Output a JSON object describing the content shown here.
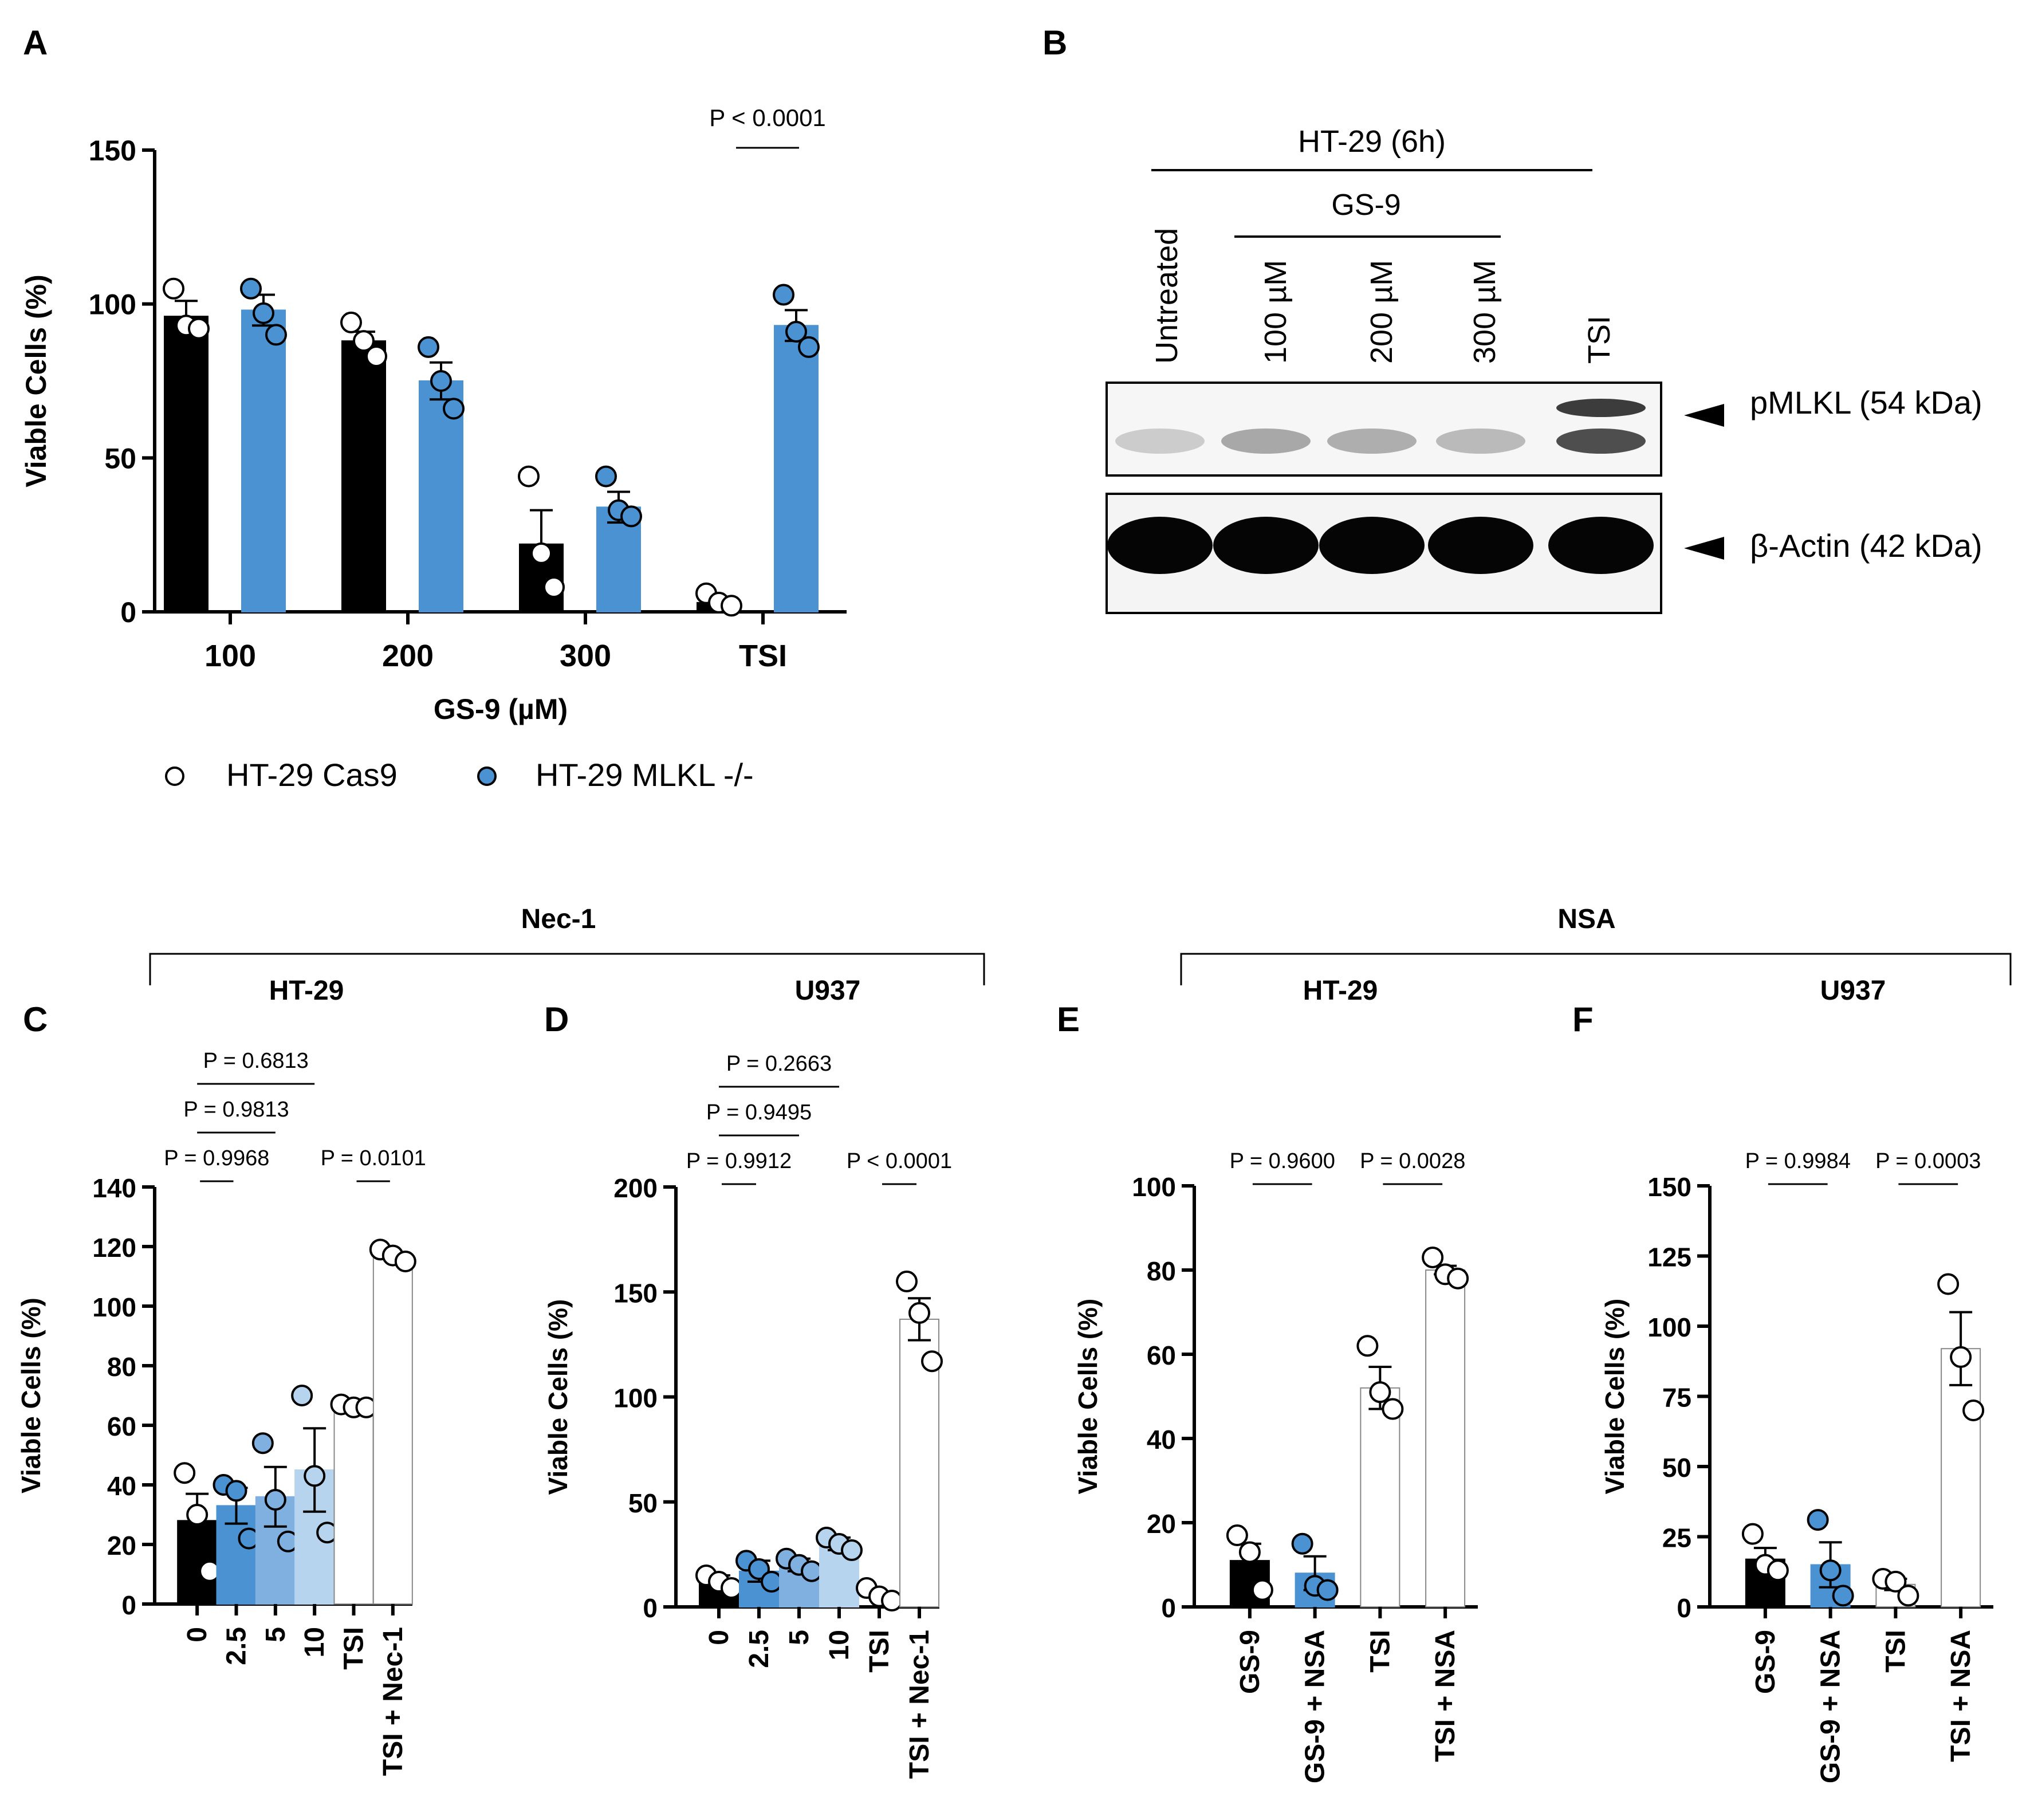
{
  "panel_labels": {
    "a": "A",
    "b": "B",
    "c": "C",
    "d": "D",
    "e": "E",
    "f": "F"
  },
  "colors": {
    "black": "#000000",
    "blue": "#4b92d3",
    "mid_blue": "#7fb0e0",
    "light_blue": "#b7d4ee",
    "white": "#ffffff"
  },
  "chart_data": [
    {
      "id": "A",
      "type": "bar",
      "title": "",
      "xlabel": "GS-9 (µM)",
      "ylabel": "Viable Cells (%)",
      "ylim": [
        0,
        150
      ],
      "yticks": [
        "0",
        "50",
        "100",
        "150"
      ],
      "categories": [
        "100",
        "200",
        "300",
        "TSI"
      ],
      "series": [
        {
          "name": "HT-29 Cas9",
          "color": "#000000",
          "marker": "open",
          "values": [
            96,
            88,
            22,
            3
          ],
          "errors": [
            5,
            3,
            11,
            1
          ],
          "points": [
            [
              105,
              93,
              92
            ],
            [
              94,
              88,
              83
            ],
            [
              44,
              19,
              8
            ],
            [
              6,
              3,
              2
            ]
          ]
        },
        {
          "name": "HT-29 MLKL -/-",
          "color": "#4b92d3",
          "marker": "filled",
          "values": [
            98,
            75,
            34,
            93
          ],
          "errors": [
            5,
            6,
            5,
            5
          ],
          "points": [
            [
              105,
              97,
              90
            ],
            [
              86,
              75,
              66
            ],
            [
              44,
              33,
              31
            ],
            [
              103,
              91,
              86
            ]
          ]
        }
      ],
      "annotations": [
        {
          "text": "P < 0.0001",
          "between": "TSI"
        }
      ]
    },
    {
      "id": "C",
      "type": "bar",
      "group_label": "HT-29",
      "xlabel": "",
      "ylabel": "Viable Cells (%)",
      "ylim": [
        0,
        140
      ],
      "yticks": [
        "0",
        "20",
        "40",
        "60",
        "80",
        "100",
        "120",
        "140"
      ],
      "categories": [
        "0",
        "2.5",
        "5",
        "10",
        "TSI",
        "TSI + Nec-1"
      ],
      "values": [
        28,
        33,
        36,
        45,
        66,
        117
      ],
      "errors": [
        9,
        6,
        10,
        14,
        1,
        1
      ],
      "bar_colors": [
        "#000000",
        "#4b92d3",
        "#7fb0e0",
        "#b7d4ee",
        "#ffffff",
        "#ffffff"
      ],
      "points": [
        [
          44,
          30,
          11
        ],
        [
          40,
          38,
          22
        ],
        [
          54,
          35,
          21
        ],
        [
          70,
          43,
          24
        ],
        [
          67,
          66,
          66
        ],
        [
          119,
          117,
          115
        ]
      ],
      "comparisons": [
        {
          "text": "P = 0.9968",
          "from": "0",
          "to": "2.5"
        },
        {
          "text": "P = 0.9813",
          "from": "0",
          "to": "5"
        },
        {
          "text": "P = 0.6813",
          "from": "0",
          "to": "10"
        },
        {
          "text": "P = 0.0101",
          "from": "TSI",
          "to": "TSI + Nec-1"
        }
      ]
    },
    {
      "id": "D",
      "type": "bar",
      "group_label": "U937",
      "xlabel": "",
      "ylabel": "Viable Cells (%)",
      "ylim": [
        0,
        200
      ],
      "yticks": [
        "0",
        "50",
        "100",
        "150",
        "200"
      ],
      "categories": [
        "0",
        "2.5",
        "5",
        "10",
        "TSI",
        "TSI + Nec-1"
      ],
      "values": [
        12,
        17,
        20,
        30,
        0,
        137
      ],
      "errors": [
        3,
        5,
        3,
        3,
        0,
        10
      ],
      "bar_colors": [
        "#000000",
        "#4b92d3",
        "#7fb0e0",
        "#b7d4ee",
        "#ffffff",
        "#ffffff"
      ],
      "points": [
        [
          15,
          12,
          9
        ],
        [
          22,
          18,
          12
        ],
        [
          23,
          20,
          17
        ],
        [
          33,
          30,
          27
        ],
        [
          9,
          5,
          3
        ],
        [
          155,
          140,
          117
        ]
      ],
      "comparisons": [
        {
          "text": "P = 0.9912",
          "from": "0",
          "to": "2.5"
        },
        {
          "text": "P = 0.9495",
          "from": "0",
          "to": "5"
        },
        {
          "text": "P = 0.2663",
          "from": "0",
          "to": "10"
        },
        {
          "text": "P < 0.0001",
          "from": "TSI",
          "to": "TSI + Nec-1"
        }
      ]
    },
    {
      "id": "E",
      "type": "bar",
      "group_label": "HT-29",
      "xlabel": "",
      "ylabel": "Viable Cells (%)",
      "ylim": [
        0,
        100
      ],
      "yticks": [
        "0",
        "20",
        "40",
        "60",
        "80",
        "100"
      ],
      "categories": [
        "GS-9",
        "GS-9 + NSA",
        "TSI",
        "TSI + NSA"
      ],
      "values": [
        11,
        8,
        52,
        80
      ],
      "errors": [
        4,
        4,
        5,
        1
      ],
      "bar_colors": [
        "#000000",
        "#4b92d3",
        "#ffffff",
        "#ffffff"
      ],
      "points": [
        [
          17,
          13,
          4
        ],
        [
          15,
          5,
          4
        ],
        [
          62,
          51,
          47
        ],
        [
          83,
          79,
          78
        ]
      ],
      "comparisons": [
        {
          "text": "P = 0.9600",
          "from": "GS-9",
          "to": "GS-9 + NSA"
        },
        {
          "text": "P = 0.0028",
          "from": "TSI",
          "to": "TSI + NSA"
        }
      ]
    },
    {
      "id": "F",
      "type": "bar",
      "group_label": "U937",
      "xlabel": "",
      "ylabel": "Viable Cells (%)",
      "ylim": [
        0,
        150
      ],
      "yticks": [
        "0",
        "25",
        "50",
        "75",
        "100",
        "125",
        "150"
      ],
      "categories": [
        "GS-9",
        "GS-9 + NSA",
        "TSI",
        "TSI + NSA"
      ],
      "values": [
        17,
        15,
        8,
        92
      ],
      "errors": [
        4,
        8,
        2,
        13
      ],
      "bar_colors": [
        "#000000",
        "#4b92d3",
        "#ffffff",
        "#ffffff"
      ],
      "points": [
        [
          26,
          15,
          13
        ],
        [
          31,
          13,
          4
        ],
        [
          10,
          9,
          4
        ],
        [
          115,
          89,
          70
        ]
      ],
      "comparisons": [
        {
          "text": "P = 0.9984",
          "from": "GS-9",
          "to": "GS-9 + NSA"
        },
        {
          "text": "P = 0.0003",
          "from": "TSI",
          "to": "TSI + NSA"
        }
      ]
    }
  ],
  "blot": {
    "title": "HT-29 (6h)",
    "group": "GS-9",
    "lanes": [
      "Untreated",
      "100 µM",
      "200 µM",
      "300 µM",
      "TSI"
    ],
    "bands": [
      {
        "label": "pMLKL (54 kDa)",
        "intensity": [
          0.15,
          0.35,
          0.32,
          0.25,
          0.85
        ]
      },
      {
        "label": "β-Actin (42 kDa)",
        "intensity": [
          1,
          1,
          1,
          1,
          1
        ]
      }
    ]
  },
  "brackets": {
    "nec1": "Nec-1",
    "nsa": "NSA"
  }
}
